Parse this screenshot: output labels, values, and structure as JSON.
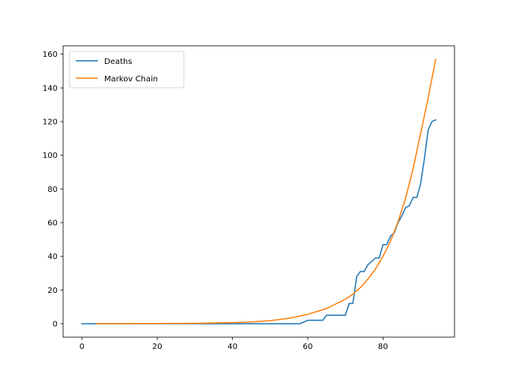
{
  "chart_data": {
    "type": "line",
    "title": "",
    "xlabel": "",
    "ylabel": "",
    "xlim": [
      -5,
      99
    ],
    "ylim": [
      -8,
      165
    ],
    "x_ticks": [
      0,
      20,
      40,
      60,
      80
    ],
    "y_ticks": [
      0,
      20,
      40,
      60,
      80,
      100,
      120,
      140,
      160
    ],
    "grid": false,
    "legend": "upper-left",
    "series": [
      {
        "name": "Deaths",
        "color": "#1f77b4",
        "x": [
          0,
          58,
          60,
          64,
          65,
          70,
          71,
          72,
          73,
          74,
          75,
          76,
          77,
          78,
          79,
          80,
          81,
          82,
          83,
          84,
          85,
          86,
          87,
          88,
          89,
          90,
          91,
          92,
          93,
          94
        ],
        "y": [
          0,
          0,
          2,
          2,
          5,
          5,
          12,
          12,
          28,
          31,
          31,
          35,
          37,
          39,
          39,
          47,
          47,
          52,
          54,
          60,
          64,
          69,
          70,
          75,
          75,
          83,
          98,
          115,
          120,
          121
        ]
      },
      {
        "name": "Markov Chain",
        "color": "#ff7f0e",
        "x": [
          4,
          10,
          20,
          30,
          40,
          45,
          50,
          55,
          60,
          65,
          70,
          72,
          74,
          76,
          78,
          80,
          82,
          84,
          86,
          88,
          90,
          92,
          94
        ],
        "y": [
          0,
          0.05,
          0.1,
          0.2,
          0.6,
          1.0,
          1.8,
          3.2,
          5.5,
          9.0,
          14.5,
          17.5,
          21.5,
          26.5,
          32.5,
          40.0,
          49.0,
          60.5,
          74.5,
          92.0,
          113.0,
          134.0,
          157.0
        ]
      }
    ]
  }
}
